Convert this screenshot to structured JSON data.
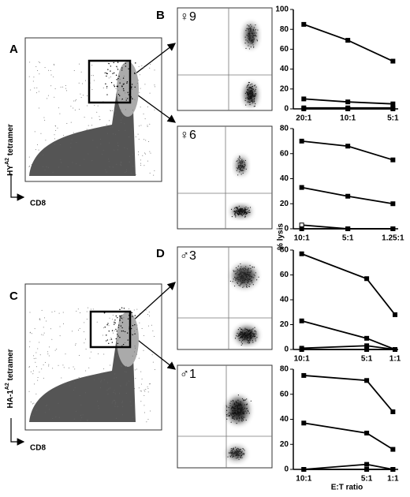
{
  "panels": [
    "A",
    "B",
    "C",
    "D"
  ],
  "axis_a": {
    "base": "HY",
    "sup": "A2",
    "rest": " tetramer"
  },
  "axis_c": {
    "base": "HA-1",
    "sup": "A2",
    "rest": " tetramer"
  },
  "x_marker": "CD8",
  "donors": [
    "♀9",
    "♀6",
    "♂3",
    "♂1"
  ],
  "y_label": "% lysis",
  "x_label": "E:T ratio",
  "chart_data": [
    {
      "type": "line",
      "categories": [
        "20:1",
        "10:1",
        "5:1"
      ],
      "ylim": [
        0,
        100
      ],
      "yticks": [
        0,
        20,
        40,
        60,
        80,
        100
      ],
      "series": [
        {
          "color": "#000",
          "marker": "square",
          "values": [
            85,
            69,
            48
          ]
        },
        {
          "color": "#000",
          "marker": "square",
          "values": [
            10,
            7,
            5
          ]
        },
        {
          "color": "#000",
          "marker": "square",
          "values": [
            1,
            1,
            1
          ]
        },
        {
          "color": "#000",
          "marker": "square",
          "values": [
            0,
            0,
            0
          ]
        }
      ]
    },
    {
      "type": "line",
      "categories": [
        "10:1",
        "5:1",
        "1.25:1"
      ],
      "ylim": [
        0,
        80
      ],
      "yticks": [
        0,
        20,
        40,
        60,
        80
      ],
      "series": [
        {
          "color": "#000",
          "marker": "square",
          "values": [
            70,
            66,
            55
          ]
        },
        {
          "color": "#000",
          "marker": "square",
          "values": [
            33,
            26,
            20
          ]
        },
        {
          "color": "#000",
          "marker": "open-square",
          "values": [
            3,
            0,
            0
          ]
        },
        {
          "color": "#000",
          "marker": "square",
          "values": [
            0,
            0,
            0
          ]
        }
      ]
    },
    {
      "type": "line",
      "categories": [
        "10:1",
        "5:1",
        "1:1"
      ],
      "ylim": [
        0,
        80
      ],
      "yticks": [
        0,
        20,
        40,
        60,
        80
      ],
      "series": [
        {
          "color": "#000",
          "marker": "square",
          "values": [
            77,
            57,
            28
          ]
        },
        {
          "color": "#000",
          "marker": "square",
          "values": [
            23,
            9,
            0
          ]
        },
        {
          "color": "#000",
          "marker": "square",
          "values": [
            1,
            3,
            0
          ]
        },
        {
          "color": "#000",
          "marker": "square",
          "values": [
            0,
            0,
            0
          ]
        }
      ]
    },
    {
      "type": "line",
      "categories": [
        "10:1",
        "5:1",
        "1:1"
      ],
      "ylim": [
        0,
        80
      ],
      "yticks": [
        0,
        20,
        40,
        60,
        80
      ],
      "series": [
        {
          "color": "#000",
          "marker": "square",
          "values": [
            75,
            71,
            46
          ]
        },
        {
          "color": "#000",
          "marker": "square",
          "values": [
            37,
            29,
            16
          ]
        },
        {
          "color": "#000",
          "marker": "square",
          "values": [
            0,
            4,
            0
          ]
        },
        {
          "color": "#000",
          "marker": "square",
          "values": [
            0,
            0,
            0
          ]
        }
      ]
    }
  ]
}
